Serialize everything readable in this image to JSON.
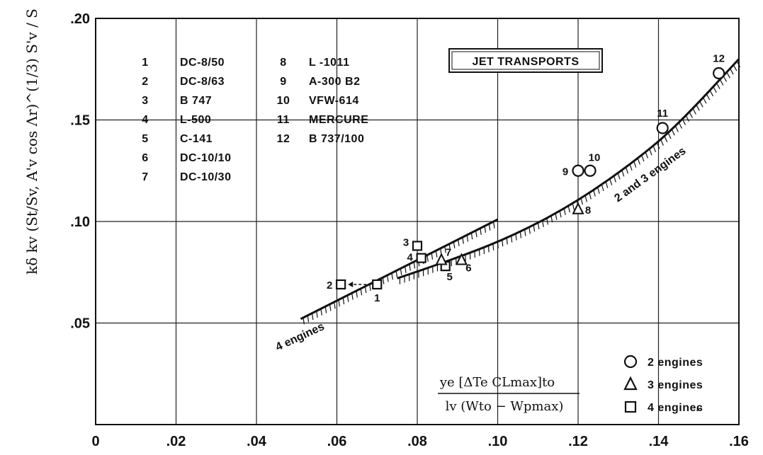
{
  "chart_data": {
    "type": "scatter",
    "title": "JET TRANSPORTS",
    "ylabel": "kδ kv (St/Sv, A'v cos Λr)^(1/3) S'v / S",
    "xlabel": {
      "numerator": "ye [ΔTe CLmax]to",
      "denominator": "lv (Wto − Wpmax)"
    },
    "xlim": [
      0,
      0.16
    ],
    "ylim": [
      0,
      0.2
    ],
    "x_ticks": [
      "0",
      ".02",
      ".04",
      ".06",
      ".08",
      ".10",
      ".12",
      ".14",
      ".16"
    ],
    "y_ticks": [
      ".05",
      ".10",
      ".15",
      ".20"
    ],
    "grid": true,
    "aircraft_legend": [
      {
        "num": "1",
        "name": "DC-8/50"
      },
      {
        "num": "2",
        "name": "DC-8/63"
      },
      {
        "num": "3",
        "name": "B  747"
      },
      {
        "num": "4",
        "name": "L-500"
      },
      {
        "num": "5",
        "name": "C-141"
      },
      {
        "num": "6",
        "name": "DC-10/10"
      },
      {
        "num": "7",
        "name": "DC-10/30"
      },
      {
        "num": "8",
        "name": "L -1011"
      },
      {
        "num": "9",
        "name": "A-300 B2"
      },
      {
        "num": "10",
        "name": "VFW-614"
      },
      {
        "num": "11",
        "name": "MERCURE"
      },
      {
        "num": "12",
        "name": "B  737/100"
      }
    ],
    "marker_legend": [
      {
        "symbol": "circle",
        "label": "2  engines"
      },
      {
        "symbol": "triangle",
        "label": "3  engines"
      },
      {
        "symbol": "square",
        "label": "4  engineɕ"
      }
    ],
    "points": [
      {
        "id": "1",
        "x": 0.07,
        "y": 0.069,
        "engines": 4
      },
      {
        "id": "2",
        "x": 0.061,
        "y": 0.069,
        "engines": 4
      },
      {
        "id": "3",
        "x": 0.08,
        "y": 0.088,
        "engines": 4
      },
      {
        "id": "4",
        "x": 0.081,
        "y": 0.082,
        "engines": 4
      },
      {
        "id": "5",
        "x": 0.087,
        "y": 0.078,
        "engines": 4
      },
      {
        "id": "6",
        "x": 0.091,
        "y": 0.081,
        "engines": 3
      },
      {
        "id": "7",
        "x": 0.086,
        "y": 0.081,
        "engines": 3
      },
      {
        "id": "8",
        "x": 0.12,
        "y": 0.106,
        "engines": 3
      },
      {
        "id": "9",
        "x": 0.12,
        "y": 0.125,
        "engines": 2
      },
      {
        "id": "10",
        "x": 0.123,
        "y": 0.125,
        "engines": 2
      },
      {
        "id": "11",
        "x": 0.141,
        "y": 0.146,
        "engines": 2
      },
      {
        "id": "12",
        "x": 0.155,
        "y": 0.173,
        "engines": 2
      }
    ],
    "curves": [
      {
        "name": "4 engines",
        "points": [
          [
            0.051,
            0.052
          ],
          [
            0.1,
            0.101
          ]
        ]
      },
      {
        "name": "2 and 3 engines",
        "points": [
          [
            0.075,
            0.072
          ],
          [
            0.09,
            0.082
          ],
          [
            0.105,
            0.094
          ],
          [
            0.12,
            0.11
          ],
          [
            0.135,
            0.131
          ],
          [
            0.145,
            0.148
          ],
          [
            0.16,
            0.18
          ]
        ]
      }
    ]
  }
}
